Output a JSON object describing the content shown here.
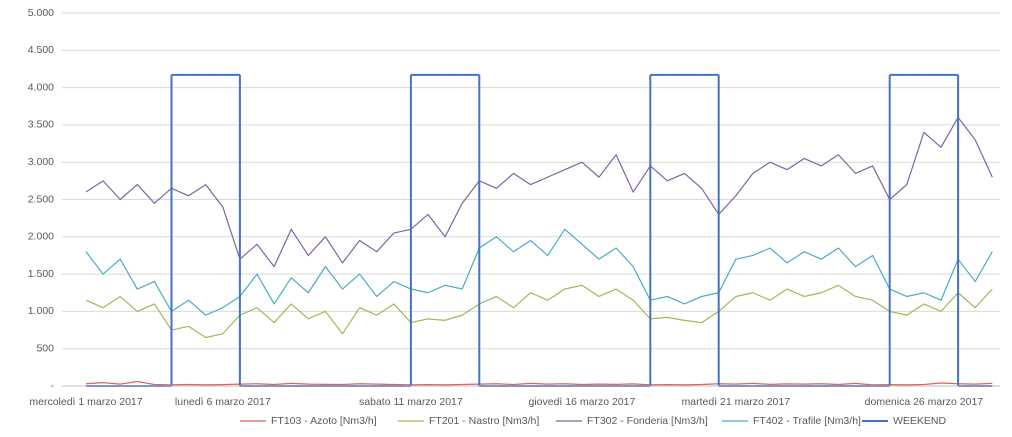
{
  "chart_data": {
    "type": "line",
    "categories": [
      "mercoledì 1 marzo 2017",
      null,
      null,
      null,
      null,
      null,
      null,
      null,
      "lunedì 6 marzo 2017",
      null,
      null,
      null,
      null,
      null,
      null,
      null,
      null,
      null,
      null,
      "sabato 11 marzo 2017",
      null,
      null,
      null,
      null,
      null,
      null,
      null,
      null,
      null,
      "giovedì 16 marzo 2017",
      null,
      null,
      null,
      null,
      null,
      null,
      null,
      null,
      "martedì 21 marzo 2017",
      null,
      null,
      null,
      null,
      null,
      null,
      null,
      null,
      null,
      null,
      "domenica 26 marzo 2017",
      null,
      null,
      null,
      null
    ],
    "ylim": [
      0,
      5000
    ],
    "yticks": [
      {
        "value": 0,
        "label": "-"
      },
      500,
      {
        "value": 1000,
        "label": "1.000"
      },
      {
        "value": 1500,
        "label": "1.500"
      },
      {
        "value": 2000,
        "label": "2.000"
      },
      {
        "value": 2500,
        "label": "2.500"
      },
      {
        "value": 3000,
        "label": "3.000"
      },
      {
        "value": 3500,
        "label": "3.500"
      },
      {
        "value": 4000,
        "label": "4.000"
      },
      {
        "value": 4500,
        "label": "4.500"
      },
      {
        "value": 5000,
        "label": "5.000"
      }
    ],
    "grid": true,
    "legend": "bottom",
    "series": [
      {
        "name": "FT103 - Azoto [Nm3/h]",
        "color": "#e0625a",
        "values": [
          30,
          45,
          25,
          60,
          20,
          15,
          20,
          15,
          18,
          25,
          30,
          20,
          35,
          25,
          22,
          20,
          30,
          25,
          20,
          15,
          18,
          15,
          20,
          25,
          30,
          20,
          35,
          25,
          30,
          20,
          25,
          22,
          28,
          15,
          18,
          15,
          20,
          30,
          25,
          35,
          22,
          28,
          25,
          30,
          20,
          35,
          15,
          18,
          15,
          20,
          40,
          30,
          25,
          35
        ]
      },
      {
        "name": "FT201 - Nastro [Nm3/h]",
        "color": "#9bbb59",
        "values": [
          1150,
          1050,
          1200,
          1000,
          1100,
          750,
          800,
          650,
          700,
          950,
          1050,
          850,
          1100,
          900,
          1000,
          700,
          1050,
          950,
          1100,
          850,
          900,
          880,
          950,
          1100,
          1200,
          1050,
          1250,
          1150,
          1300,
          1350,
          1200,
          1300,
          1150,
          900,
          920,
          880,
          850,
          1000,
          1200,
          1250,
          1150,
          1300,
          1200,
          1250,
          1350,
          1200,
          1150,
          1000,
          950,
          1100,
          1000,
          1250,
          1050,
          1300
        ]
      },
      {
        "name": "FT302 - Fonderia [Nm3/h]",
        "color": "#8064a2",
        "values": [
          2600,
          2750,
          2500,
          2700,
          2450,
          2650,
          2550,
          2700,
          2400,
          1700,
          1900,
          1600,
          2100,
          1750,
          2000,
          1650,
          1950,
          1800,
          2050,
          2100,
          2300,
          2000,
          2450,
          2750,
          2650,
          2850,
          2700,
          2800,
          2900,
          3000,
          2800,
          3100,
          2600,
          2950,
          2750,
          2850,
          2650,
          2300,
          2550,
          2850,
          3000,
          2900,
          3050,
          2950,
          3100,
          2850,
          2950,
          2500,
          2700,
          3400,
          3200,
          3600,
          3300,
          2800
        ]
      },
      {
        "name": "FT402 - Trafile [Nm3/h]",
        "color": "#4bacc6",
        "values": [
          1800,
          1500,
          1700,
          1300,
          1400,
          1000,
          1150,
          950,
          1050,
          1200,
          1500,
          1100,
          1450,
          1250,
          1600,
          1300,
          1500,
          1200,
          1400,
          1300,
          1250,
          1350,
          1300,
          1850,
          2000,
          1800,
          1950,
          1750,
          2100,
          1900,
          1700,
          1850,
          1600,
          1150,
          1200,
          1100,
          1200,
          1250,
          1700,
          1750,
          1850,
          1650,
          1800,
          1700,
          1850,
          1600,
          1750,
          1300,
          1200,
          1250,
          1150,
          1700,
          1400,
          1800
        ]
      },
      {
        "name": "WEEKEND",
        "color": "#4472c4",
        "step": "post",
        "values": [
          0,
          0,
          0,
          0,
          0,
          4170,
          4170,
          4170,
          4170,
          0,
          0,
          0,
          0,
          0,
          0,
          0,
          0,
          0,
          0,
          4170,
          4170,
          4170,
          4170,
          0,
          0,
          0,
          0,
          0,
          0,
          0,
          0,
          0,
          0,
          4170,
          4170,
          4170,
          4170,
          0,
          0,
          0,
          0,
          0,
          0,
          0,
          0,
          0,
          0,
          4170,
          4170,
          4170,
          4170,
          0,
          0,
          0
        ]
      }
    ]
  }
}
